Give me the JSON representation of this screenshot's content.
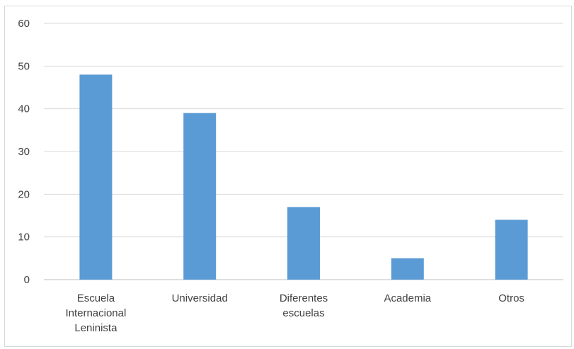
{
  "chart_data": {
    "type": "bar",
    "title": "",
    "xlabel": "",
    "ylabel": "",
    "categories": [
      "Escuela Internacional Leninista",
      "Universidad",
      "Diferentes escuelas",
      "Academia",
      "Otros"
    ],
    "category_lines": [
      [
        "Escuela",
        "Internacional",
        "Leninista"
      ],
      [
        "Universidad"
      ],
      [
        "Diferentes",
        "escuelas"
      ],
      [
        "Academia"
      ],
      [
        "Otros"
      ]
    ],
    "values": [
      48,
      39,
      17,
      5,
      14
    ],
    "ylim": [
      0,
      60
    ],
    "yticks": [
      0,
      10,
      20,
      30,
      40,
      50,
      60
    ],
    "grid": true,
    "legend": "none",
    "colors": {
      "bar": "#5b9bd5",
      "grid": "#d9d9d9",
      "axis": "#bfbfbf",
      "text": "#404040"
    }
  }
}
